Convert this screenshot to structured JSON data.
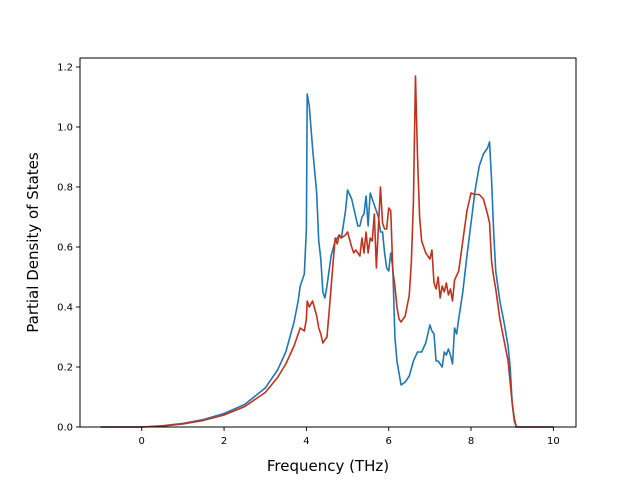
{
  "chart_data": {
    "type": "line",
    "title": "",
    "xlabel": "Frequency (THz)",
    "ylabel": "Partial Density of States",
    "xlim": [
      -1.5,
      10.55
    ],
    "ylim": [
      0.0,
      1.23
    ],
    "xticks": [
      0,
      2,
      4,
      6,
      8,
      10
    ],
    "yticks": [
      0.0,
      0.2,
      0.4,
      0.6,
      0.8,
      1.0,
      1.2
    ],
    "xtick_labels": [
      "0",
      "2",
      "4",
      "6",
      "8",
      "10"
    ],
    "ytick_labels": [
      "0.0",
      "0.2",
      "0.4",
      "0.6",
      "0.8",
      "1.0",
      "1.2"
    ],
    "grid": false,
    "legend": "none",
    "series": [
      {
        "color": "#1f77b4",
        "points": [
          [
            -1.0,
            0.0
          ],
          [
            -0.5,
            0.0
          ],
          [
            0.0,
            0.0
          ],
          [
            0.5,
            0.004
          ],
          [
            1.0,
            0.012
          ],
          [
            1.5,
            0.025
          ],
          [
            2.0,
            0.045
          ],
          [
            2.5,
            0.075
          ],
          [
            3.0,
            0.13
          ],
          [
            3.3,
            0.19
          ],
          [
            3.5,
            0.25
          ],
          [
            3.7,
            0.35
          ],
          [
            3.8,
            0.42
          ],
          [
            3.85,
            0.47
          ],
          [
            3.95,
            0.51
          ],
          [
            4.0,
            0.66
          ],
          [
            4.02,
            1.11
          ],
          [
            4.07,
            1.07
          ],
          [
            4.15,
            0.93
          ],
          [
            4.25,
            0.78
          ],
          [
            4.3,
            0.62
          ],
          [
            4.35,
            0.56
          ],
          [
            4.4,
            0.45
          ],
          [
            4.45,
            0.43
          ],
          [
            4.5,
            0.47
          ],
          [
            4.6,
            0.57
          ],
          [
            4.7,
            0.62
          ],
          [
            4.8,
            0.64
          ],
          [
            4.85,
            0.63
          ],
          [
            4.95,
            0.72
          ],
          [
            5.0,
            0.79
          ],
          [
            5.1,
            0.76
          ],
          [
            5.2,
            0.7
          ],
          [
            5.25,
            0.67
          ],
          [
            5.3,
            0.67
          ],
          [
            5.35,
            0.7
          ],
          [
            5.4,
            0.71
          ],
          [
            5.45,
            0.77
          ],
          [
            5.5,
            0.67
          ],
          [
            5.55,
            0.78
          ],
          [
            5.6,
            0.76
          ],
          [
            5.65,
            0.74
          ],
          [
            5.7,
            0.72
          ],
          [
            5.75,
            0.7
          ],
          [
            5.8,
            0.65
          ],
          [
            5.85,
            0.65
          ],
          [
            5.9,
            0.58
          ],
          [
            5.95,
            0.53
          ],
          [
            6.0,
            0.52
          ],
          [
            6.05,
            0.58
          ],
          [
            6.1,
            0.53
          ],
          [
            6.15,
            0.3
          ],
          [
            6.2,
            0.22
          ],
          [
            6.3,
            0.14
          ],
          [
            6.4,
            0.15
          ],
          [
            6.5,
            0.17
          ],
          [
            6.6,
            0.22
          ],
          [
            6.7,
            0.25
          ],
          [
            6.8,
            0.25
          ],
          [
            6.9,
            0.28
          ],
          [
            6.95,
            0.31
          ],
          [
            7.0,
            0.34
          ],
          [
            7.05,
            0.32
          ],
          [
            7.1,
            0.31
          ],
          [
            7.15,
            0.22
          ],
          [
            7.2,
            0.22
          ],
          [
            7.25,
            0.21
          ],
          [
            7.3,
            0.2
          ],
          [
            7.35,
            0.25
          ],
          [
            7.4,
            0.24
          ],
          [
            7.45,
            0.26
          ],
          [
            7.5,
            0.24
          ],
          [
            7.55,
            0.21
          ],
          [
            7.6,
            0.33
          ],
          [
            7.65,
            0.31
          ],
          [
            7.7,
            0.36
          ],
          [
            7.8,
            0.45
          ],
          [
            7.9,
            0.57
          ],
          [
            8.0,
            0.68
          ],
          [
            8.1,
            0.79
          ],
          [
            8.2,
            0.87
          ],
          [
            8.3,
            0.91
          ],
          [
            8.4,
            0.93
          ],
          [
            8.45,
            0.95
          ],
          [
            8.5,
            0.82
          ],
          [
            8.55,
            0.65
          ],
          [
            8.6,
            0.52
          ],
          [
            8.7,
            0.42
          ],
          [
            8.8,
            0.35
          ],
          [
            8.9,
            0.27
          ],
          [
            8.95,
            0.2
          ],
          [
            9.0,
            0.08
          ],
          [
            9.05,
            0.02
          ],
          [
            9.1,
            0.0
          ],
          [
            9.5,
            0.0
          ],
          [
            10.0,
            0.0
          ]
        ]
      },
      {
        "color": "#c0321e",
        "points": [
          [
            -1.0,
            0.0
          ],
          [
            -0.5,
            0.0
          ],
          [
            0.0,
            0.0
          ],
          [
            0.5,
            0.003
          ],
          [
            1.0,
            0.01
          ],
          [
            1.5,
            0.022
          ],
          [
            2.0,
            0.04
          ],
          [
            2.5,
            0.068
          ],
          [
            3.0,
            0.115
          ],
          [
            3.3,
            0.165
          ],
          [
            3.5,
            0.21
          ],
          [
            3.7,
            0.27
          ],
          [
            3.8,
            0.31
          ],
          [
            3.85,
            0.33
          ],
          [
            3.95,
            0.32
          ],
          [
            4.0,
            0.36
          ],
          [
            4.02,
            0.42
          ],
          [
            4.07,
            0.4
          ],
          [
            4.15,
            0.42
          ],
          [
            4.25,
            0.37
          ],
          [
            4.3,
            0.33
          ],
          [
            4.35,
            0.31
          ],
          [
            4.4,
            0.28
          ],
          [
            4.45,
            0.29
          ],
          [
            4.5,
            0.3
          ],
          [
            4.55,
            0.38
          ],
          [
            4.65,
            0.55
          ],
          [
            4.7,
            0.63
          ],
          [
            4.75,
            0.61
          ],
          [
            4.8,
            0.64
          ],
          [
            4.85,
            0.63
          ],
          [
            4.95,
            0.64
          ],
          [
            5.0,
            0.65
          ],
          [
            5.1,
            0.6
          ],
          [
            5.15,
            0.58
          ],
          [
            5.2,
            0.59
          ],
          [
            5.3,
            0.57
          ],
          [
            5.35,
            0.63
          ],
          [
            5.4,
            0.58
          ],
          [
            5.45,
            0.65
          ],
          [
            5.5,
            0.58
          ],
          [
            5.55,
            0.63
          ],
          [
            5.6,
            0.62
          ],
          [
            5.65,
            0.71
          ],
          [
            5.7,
            0.53
          ],
          [
            5.75,
            0.67
          ],
          [
            5.8,
            0.8
          ],
          [
            5.85,
            0.68
          ],
          [
            5.9,
            0.66
          ],
          [
            5.95,
            0.66
          ],
          [
            6.0,
            0.73
          ],
          [
            6.05,
            0.72
          ],
          [
            6.1,
            0.52
          ],
          [
            6.15,
            0.47
          ],
          [
            6.2,
            0.4
          ],
          [
            6.25,
            0.36
          ],
          [
            6.3,
            0.35
          ],
          [
            6.4,
            0.37
          ],
          [
            6.5,
            0.44
          ],
          [
            6.55,
            0.55
          ],
          [
            6.6,
            0.75
          ],
          [
            6.65,
            1.17
          ],
          [
            6.7,
            0.9
          ],
          [
            6.75,
            0.7
          ],
          [
            6.8,
            0.62
          ],
          [
            6.9,
            0.58
          ],
          [
            7.0,
            0.56
          ],
          [
            7.05,
            0.59
          ],
          [
            7.1,
            0.48
          ],
          [
            7.15,
            0.46
          ],
          [
            7.2,
            0.5
          ],
          [
            7.25,
            0.43
          ],
          [
            7.3,
            0.47
          ],
          [
            7.35,
            0.45
          ],
          [
            7.4,
            0.48
          ],
          [
            7.45,
            0.44
          ],
          [
            7.5,
            0.46
          ],
          [
            7.55,
            0.42
          ],
          [
            7.6,
            0.49
          ],
          [
            7.7,
            0.52
          ],
          [
            7.8,
            0.62
          ],
          [
            7.9,
            0.72
          ],
          [
            8.0,
            0.78
          ],
          [
            8.1,
            0.775
          ],
          [
            8.2,
            0.775
          ],
          [
            8.3,
            0.76
          ],
          [
            8.4,
            0.71
          ],
          [
            8.45,
            0.68
          ],
          [
            8.5,
            0.55
          ],
          [
            8.55,
            0.5
          ],
          [
            8.6,
            0.46
          ],
          [
            8.7,
            0.36
          ],
          [
            8.8,
            0.29
          ],
          [
            8.9,
            0.22
          ],
          [
            9.0,
            0.08
          ],
          [
            9.05,
            0.03
          ],
          [
            9.1,
            0.0
          ],
          [
            9.5,
            0.0
          ],
          [
            10.0,
            0.0
          ]
        ]
      }
    ]
  }
}
